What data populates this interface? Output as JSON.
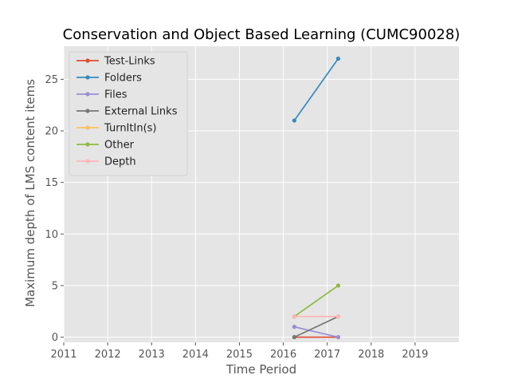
{
  "chart_data": {
    "type": "line",
    "title": "Conservation and Object Based Learning (CUMC90028)",
    "xlabel": "Time Period",
    "ylabel": "Maximum depth of LMS content items",
    "xlim": [
      2011,
      2020
    ],
    "ylim": [
      -0.5,
      28.2
    ],
    "xticks": [
      2011,
      2012,
      2013,
      2014,
      2015,
      2016,
      2017,
      2018,
      2019
    ],
    "yticks": [
      0,
      5,
      10,
      15,
      20,
      25
    ],
    "grid": true,
    "legend_position": "top-left",
    "series": [
      {
        "name": "Test-Links",
        "color": "#e24a33",
        "x": [
          2016.25,
          2017.25
        ],
        "y": [
          0,
          0
        ]
      },
      {
        "name": "Folders",
        "color": "#348abd",
        "x": [
          2016.25,
          2017.25
        ],
        "y": [
          21,
          27
        ]
      },
      {
        "name": "Files",
        "color": "#988ed5",
        "x": [
          2016.25,
          2017.25
        ],
        "y": [
          1,
          0
        ]
      },
      {
        "name": "External Links",
        "color": "#777777",
        "x": [
          2016.25,
          2017.25
        ],
        "y": [
          0,
          2
        ]
      },
      {
        "name": "TurnItIn(s)",
        "color": "#fbc15e",
        "x": [
          2016.25,
          2017.25
        ],
        "y": [
          2,
          2
        ]
      },
      {
        "name": "Other",
        "color": "#8eba42",
        "x": [
          2016.25,
          2017.25
        ],
        "y": [
          2,
          5
        ]
      },
      {
        "name": "Depth",
        "color": "#ffb5b8",
        "x": [
          2016.25,
          2017.25
        ],
        "y": [
          2,
          2
        ]
      }
    ]
  }
}
